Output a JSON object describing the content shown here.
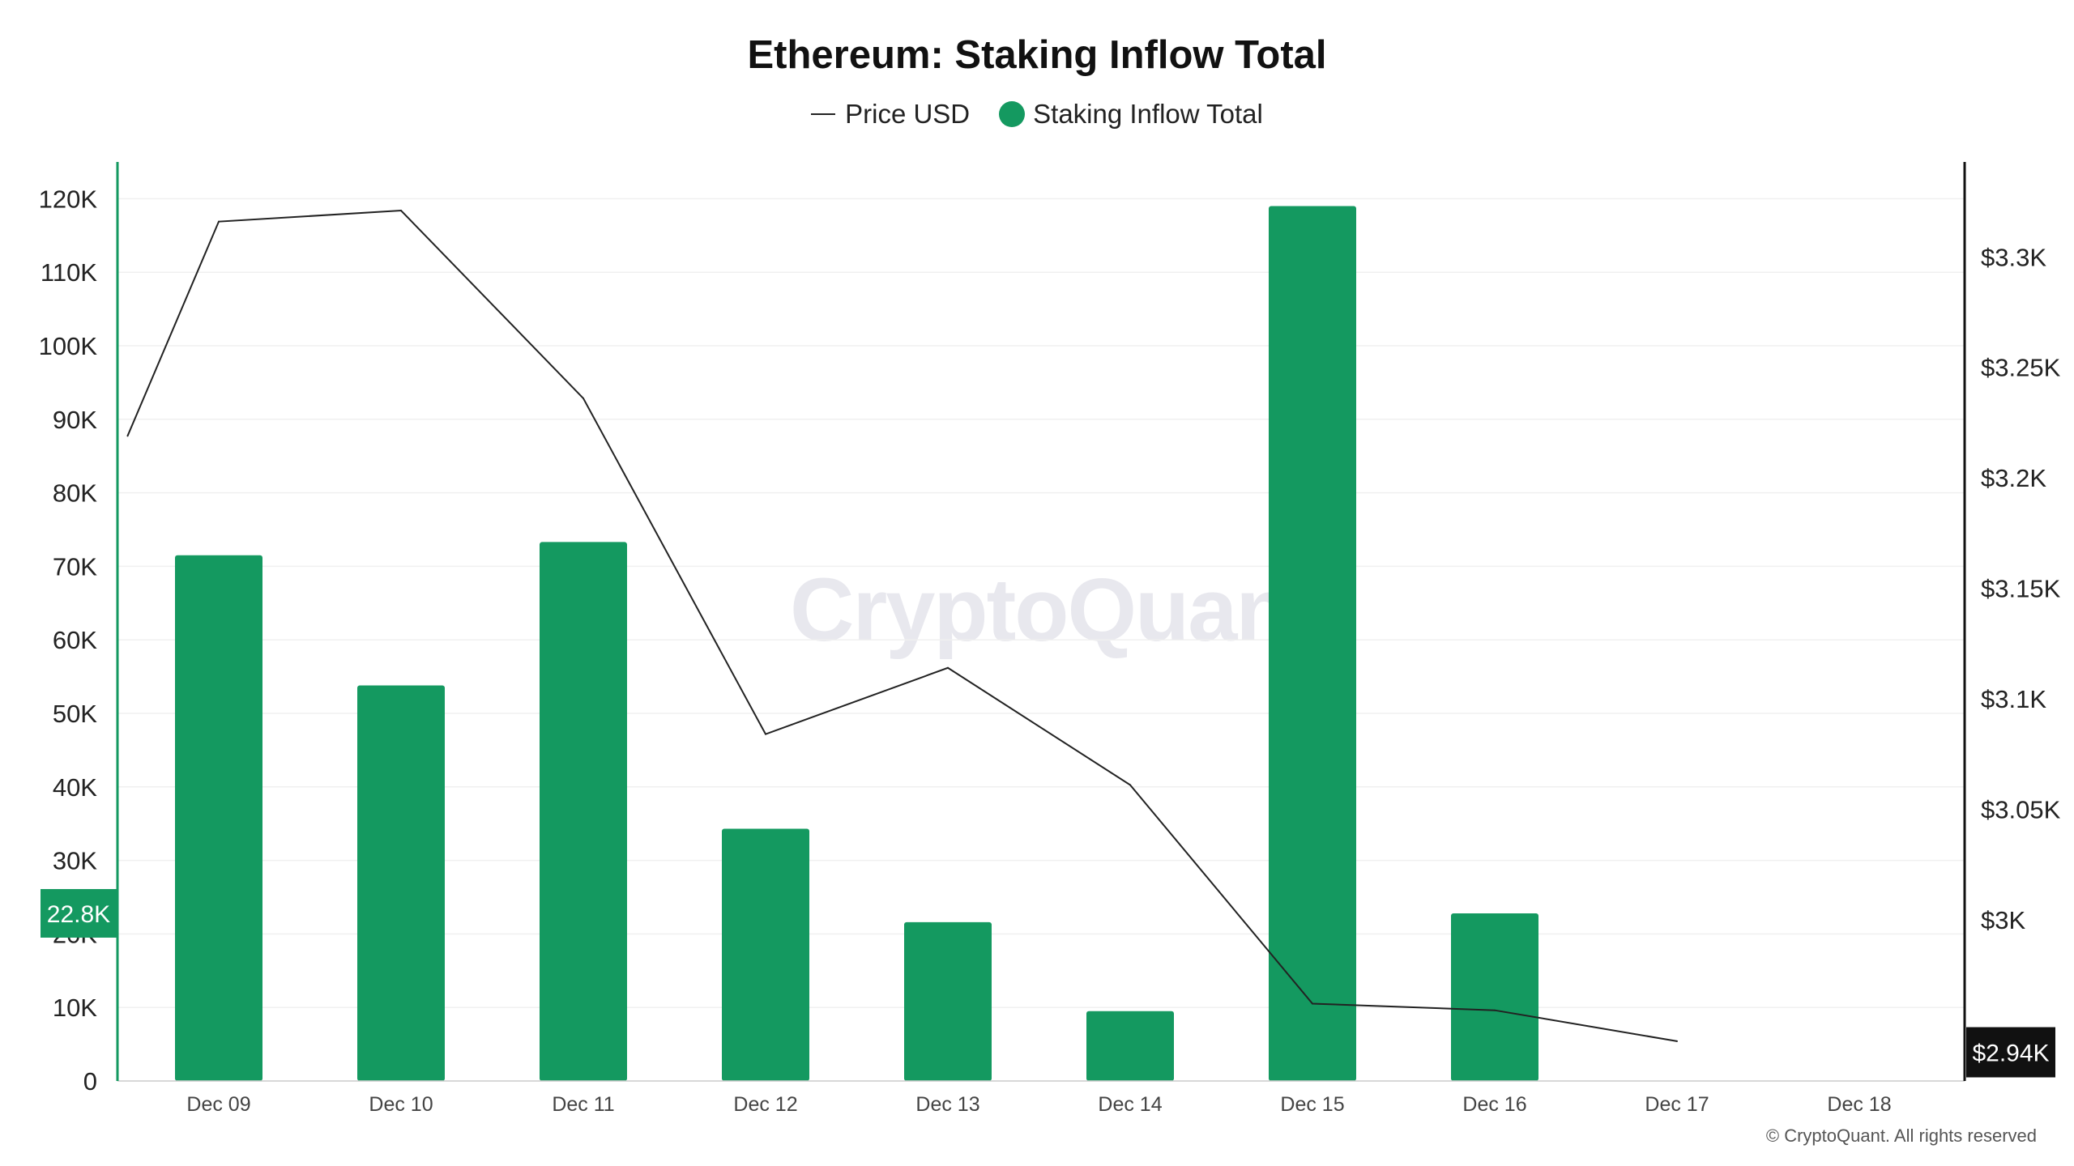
{
  "title": "Ethereum: Staking Inflow Total",
  "legend": {
    "price_label": "Price USD",
    "inflow_label": "Staking Inflow Total"
  },
  "watermark": "CryptoQuant",
  "copyright": "© CryptoQuant. All rights reserved",
  "colors": {
    "bar": "#149960",
    "price_line": "#222222",
    "current_price_badge": "#111111",
    "current_inflow_badge": "#149960",
    "left_axis": "#149960",
    "right_axis": "#111111",
    "grid": "#f0f0f0"
  },
  "chart_data": {
    "type": "bar",
    "title": "Ethereum: Staking Inflow Total",
    "categories": [
      "Dec 09",
      "Dec 10",
      "Dec 11",
      "Dec 12",
      "Dec 13",
      "Dec 14",
      "Dec 15",
      "Dec 16",
      "Dec 17",
      "Dec 18"
    ],
    "series": [
      {
        "name": "Staking Inflow Total",
        "type": "bar",
        "axis": "left",
        "values": [
          71500,
          53800,
          73300,
          34300,
          21600,
          9500,
          119000,
          22800,
          null,
          null
        ]
      },
      {
        "name": "Price USD",
        "type": "line",
        "axis": "right",
        "points": [
          {
            "x": "Dec 09",
            "offset": -0.5,
            "y": 3219
          },
          {
            "x": "Dec 09",
            "offset": 0,
            "y": 3316
          },
          {
            "x": "Dec 10",
            "offset": 0,
            "y": 3321
          },
          {
            "x": "Dec 11",
            "offset": 0,
            "y": 3236
          },
          {
            "x": "Dec 12",
            "offset": 0,
            "y": 3084
          },
          {
            "x": "Dec 13",
            "offset": 0,
            "y": 3114
          },
          {
            "x": "Dec 14",
            "offset": 0,
            "y": 3061
          },
          {
            "x": "Dec 15",
            "offset": 0,
            "y": 2962
          },
          {
            "x": "Dec 16",
            "offset": 0,
            "y": 2959
          },
          {
            "x": "Dec 17",
            "offset": 0,
            "y": 2945
          }
        ]
      }
    ],
    "left_axis": {
      "ylim": [
        0,
        125000
      ],
      "ticks": [
        0,
        10000,
        20000,
        30000,
        40000,
        50000,
        60000,
        70000,
        80000,
        90000,
        100000,
        110000,
        120000
      ],
      "tick_labels": [
        "0",
        "10K",
        "20K",
        "30K",
        "40K",
        "50K",
        "60K",
        "70K",
        "80K",
        "90K",
        "100K",
        "110K",
        "120K"
      ]
    },
    "right_axis": {
      "ylim": [
        2927,
        3343
      ],
      "ticks": [
        3000,
        3050,
        3100,
        3150,
        3200,
        3250,
        3300
      ],
      "tick_labels": [
        "$3K",
        "$3.05K",
        "$3.1K",
        "$3.15K",
        "$3.2K",
        "$3.25K",
        "$3.3K"
      ]
    },
    "current_values": {
      "inflow": 22800,
      "inflow_label": "22.8K",
      "price": 2940,
      "price_label": "$2.94K"
    },
    "grid": true,
    "legend_position": "top-center"
  }
}
